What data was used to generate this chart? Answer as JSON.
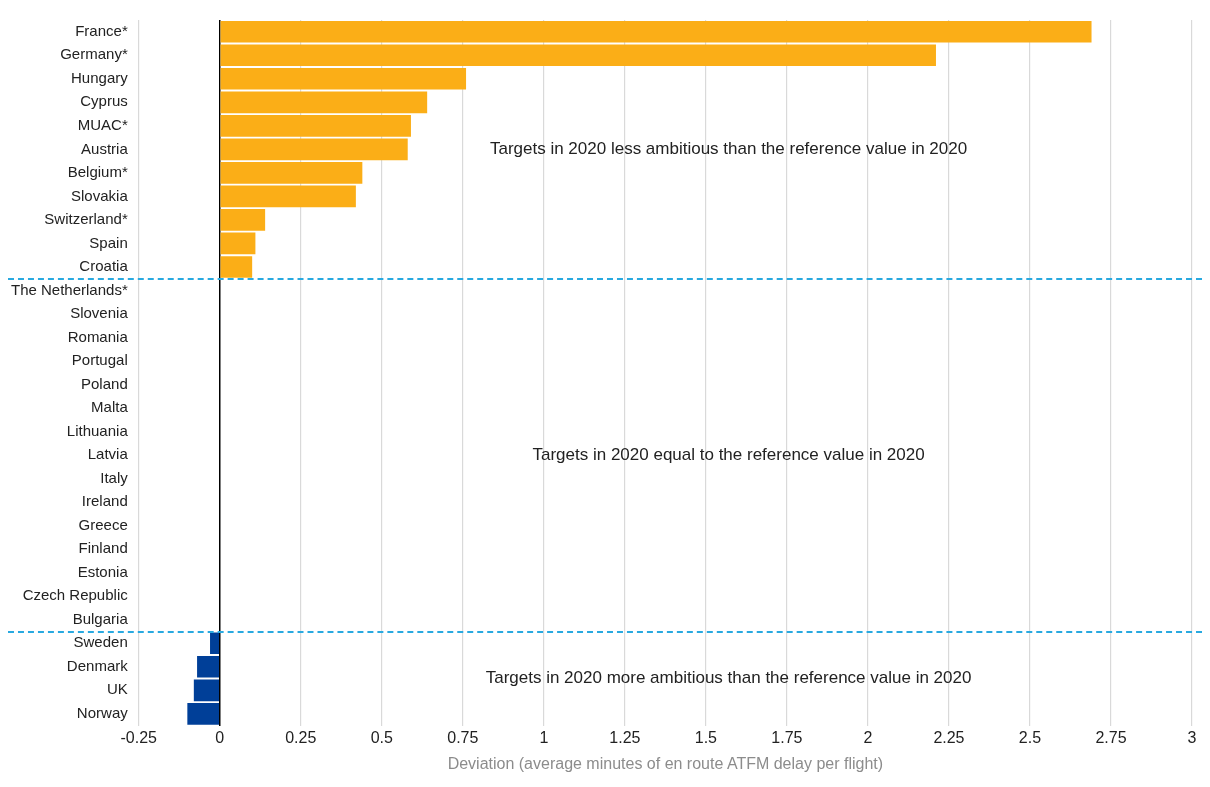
{
  "chart_data": {
    "type": "bar",
    "orientation": "horizontal",
    "xlabel": "Deviation (average minutes of en route ATFM delay per flight)",
    "categories": [
      "France*",
      "Germany*",
      "Hungary",
      "Cyprus",
      "MUAC*",
      "Austria",
      "Belgium*",
      "Slovakia",
      "Switzerland*",
      "Spain",
      "Croatia",
      "The Netherlands*",
      "Slovenia",
      "Romania",
      "Portugal",
      "Poland",
      "Malta",
      "Lithuania",
      "Latvia",
      "Italy",
      "Ireland",
      "Greece",
      "Finland",
      "Estonia",
      "Czech Republic",
      "Bulgaria",
      "Sweden",
      "Denmark",
      "UK",
      "Norway"
    ],
    "values": [
      2.69,
      2.21,
      0.76,
      0.64,
      0.59,
      0.58,
      0.44,
      0.42,
      0.14,
      0.11,
      0.1,
      0,
      0,
      0,
      0,
      0,
      0,
      0,
      0,
      0,
      0,
      0,
      0,
      0,
      0,
      0,
      -0.03,
      -0.07,
      -0.08,
      -0.1
    ],
    "colors": [
      "#fbae17",
      "#fbae17",
      "#fbae17",
      "#fbae17",
      "#fbae17",
      "#fbae17",
      "#fbae17",
      "#fbae17",
      "#fbae17",
      "#fbae17",
      "#fbae17",
      "#fbae17",
      "#fbae17",
      "#fbae17",
      "#fbae17",
      "#fbae17",
      "#fbae17",
      "#fbae17",
      "#fbae17",
      "#fbae17",
      "#fbae17",
      "#fbae17",
      "#fbae17",
      "#fbae17",
      "#fbae17",
      "#fbae17",
      "#003f98",
      "#003f98",
      "#003f98",
      "#003f98"
    ],
    "xlim": [
      -0.25,
      3
    ],
    "xticks": [
      -0.25,
      0,
      0.25,
      0.5,
      0.75,
      1,
      1.25,
      1.5,
      1.75,
      2,
      2.25,
      2.5,
      2.75,
      3
    ],
    "grid": "x",
    "legend": false,
    "annotations": [
      "Targets in 2020 less ambitious than the reference value in 2020",
      "Targets in 2020 equal to the reference value in 2020",
      "Targets in 2020 more ambitious than the reference value in 2020"
    ]
  }
}
